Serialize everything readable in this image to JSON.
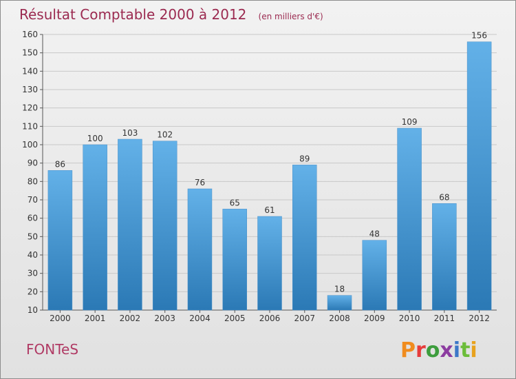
{
  "chart_data": {
    "type": "bar",
    "title": "Résultat Comptable 2000 à 2012",
    "subtitle": "(en milliers d'€)",
    "categories": [
      "2000",
      "2001",
      "2002",
      "2003",
      "2004",
      "2005",
      "2006",
      "2007",
      "2008",
      "2009",
      "2010",
      "2011",
      "2012"
    ],
    "values": [
      86,
      100,
      103,
      102,
      76,
      65,
      61,
      89,
      18,
      48,
      109,
      68,
      156
    ],
    "ylim": [
      10,
      160
    ],
    "yticks": [
      10,
      20,
      30,
      40,
      50,
      60,
      70,
      80,
      90,
      100,
      110,
      120,
      130,
      140,
      150,
      160
    ],
    "xlabel": "",
    "ylabel": "",
    "grid": true
  },
  "footer": {
    "commune": "FONTeS",
    "logo": "Proxiti"
  },
  "colors": {
    "bar_top": "#63b1e8",
    "bar_bottom": "#2b79b5",
    "title": "#9b2a50",
    "logo_P": "#f08c1e",
    "logo_r": "#e63c3c",
    "logo_o": "#3d9d3d",
    "logo_x": "#8c3ca0",
    "logo_i": "#3c78c8",
    "logo_t": "#6cbd3a",
    "logo_i2": "#e8a21e"
  }
}
